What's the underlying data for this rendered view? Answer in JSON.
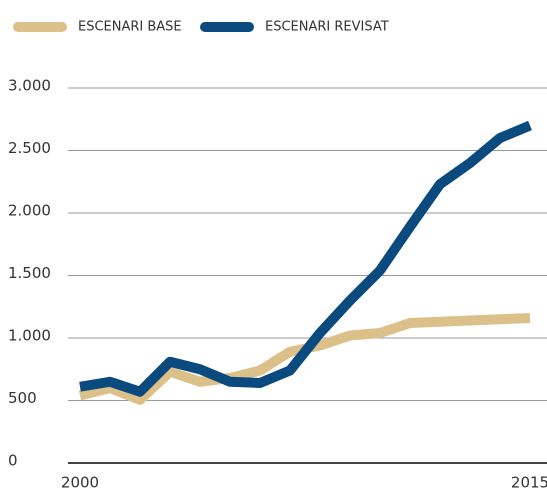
{
  "chart_data": {
    "type": "line",
    "x": [
      2000,
      2001,
      2002,
      2003,
      2004,
      2005,
      2006,
      2007,
      2008,
      2009,
      2010,
      2011,
      2012,
      2013,
      2014,
      2015
    ],
    "series": [
      {
        "name": "ESCENARI BASE",
        "color": "#dcc089",
        "values": [
          540,
          600,
          505,
          730,
          650,
          680,
          740,
          890,
          940,
          1020,
          1040,
          1120,
          1130,
          1140,
          1150,
          1160
        ]
      },
      {
        "name": "ESCENARI REVISAT",
        "color": "#0b4a7e",
        "values": [
          610,
          650,
          570,
          810,
          750,
          650,
          640,
          740,
          1040,
          1300,
          1540,
          1890,
          2230,
          2400,
          2600,
          2700
        ]
      }
    ],
    "xlim": [
      2000,
      2015
    ],
    "xticks": [
      2000,
      2015
    ],
    "ylim": [
      0,
      3000
    ],
    "yticks": [
      0,
      500,
      {
        "value": 1000,
        "label": "1.000"
      },
      {
        "value": 1500,
        "label": "1.500"
      },
      {
        "value": 2000,
        "label": "2.000"
      },
      {
        "value": 2500,
        "label": "2.500"
      },
      {
        "value": 3000,
        "label": "3.000"
      }
    ],
    "grid": true,
    "legend": "top"
  }
}
